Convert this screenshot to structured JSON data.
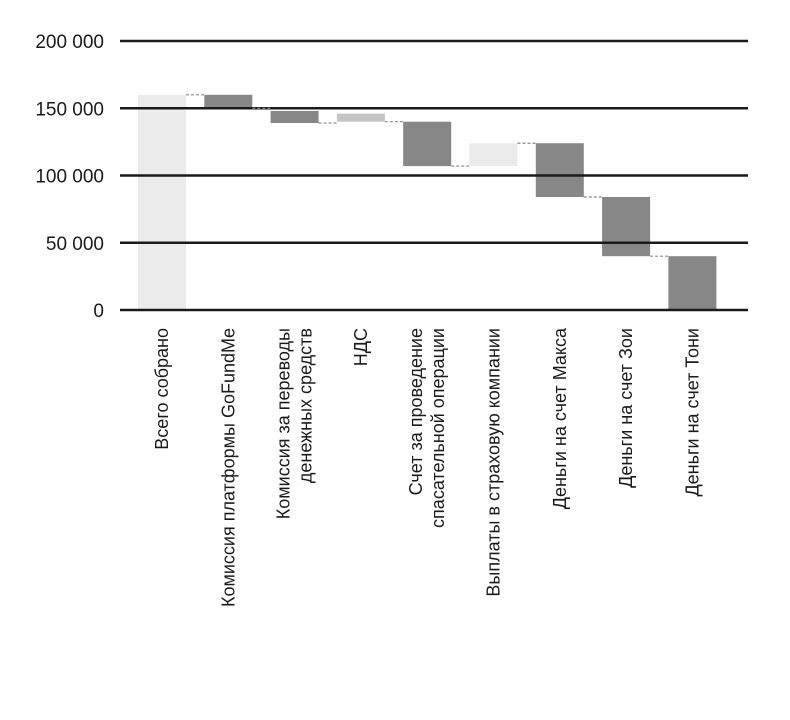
{
  "chart_data": {
    "type": "waterfall",
    "title": "",
    "xlabel": "",
    "ylabel": "",
    "ylim": [
      0,
      200000
    ],
    "yticks": [
      0,
      50000,
      100000,
      150000,
      200000
    ],
    "ytick_labels": [
      "0",
      "50 000",
      "100 000",
      "150 000",
      "200 000"
    ],
    "grid": true,
    "categories": [
      [
        "Всего собрано"
      ],
      [
        "Комиссия платформы GoFundMe"
      ],
      [
        "Комиссия за переводы",
        "денежных средств"
      ],
      [
        "НДС"
      ],
      [
        "Счет за проведение",
        "спасательной операции"
      ],
      [
        "Выплаты в страховую компании"
      ],
      [
        "Деньги на счет Макса"
      ],
      [
        "Деньги на счет Зои"
      ],
      [
        "Деньги на счет Тони"
      ]
    ],
    "bars": [
      {
        "start": 0,
        "end": 160000,
        "color": "#ebebeb"
      },
      {
        "start": 160000,
        "end": 150000,
        "color": "#878787"
      },
      {
        "start": 148000,
        "end": 139000,
        "color": "#878787"
      },
      {
        "start": 146000,
        "end": 140000,
        "color": "#c4c4c4"
      },
      {
        "start": 140000,
        "end": 107000,
        "color": "#878787"
      },
      {
        "start": 107000,
        "end": 124000,
        "color": "#ebebeb"
      },
      {
        "start": 124000,
        "end": 84000,
        "color": "#878787"
      },
      {
        "start": 84000,
        "end": 40000,
        "color": "#878787"
      },
      {
        "start": 40000,
        "end": 0,
        "color": "#878787"
      }
    ]
  }
}
